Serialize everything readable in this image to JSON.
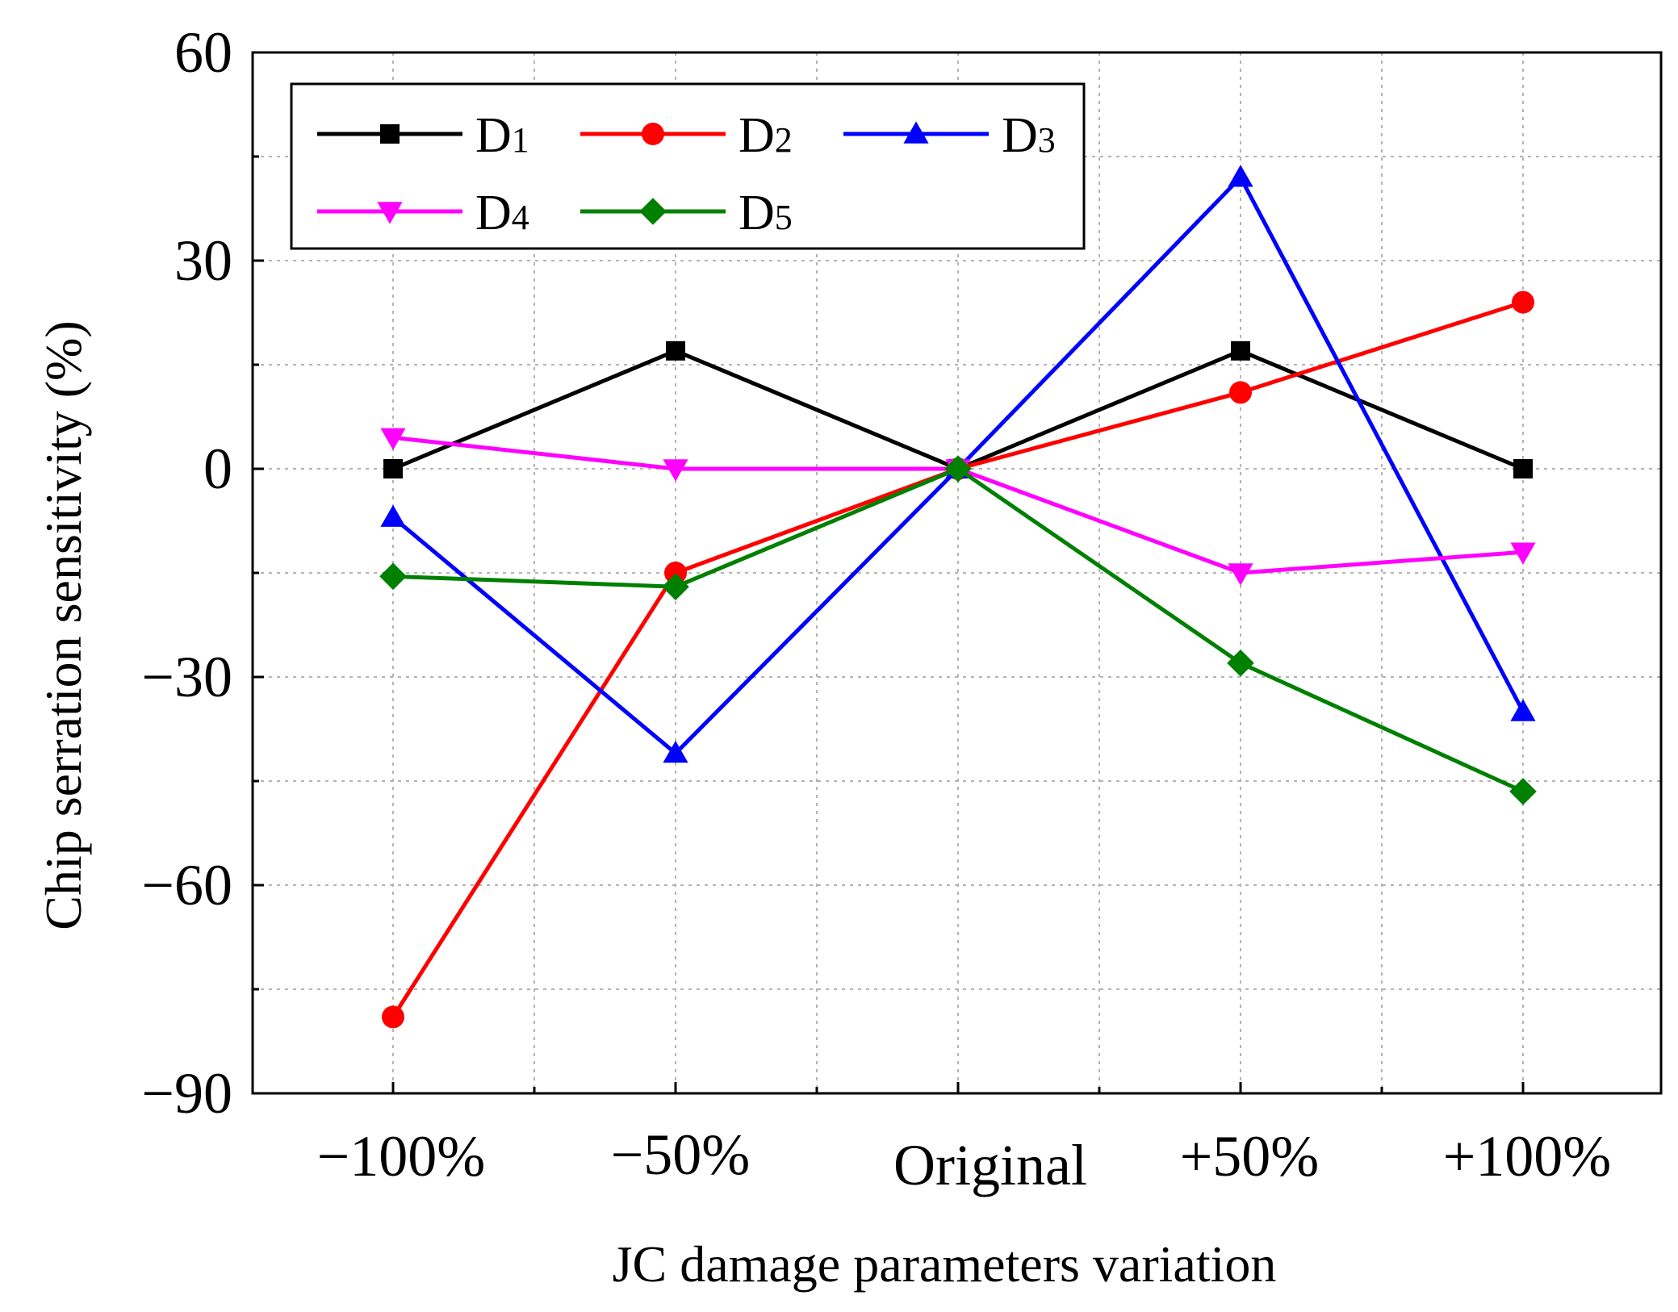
{
  "chart_data": {
    "type": "line",
    "title": "",
    "xlabel": "JC damage parameters variation",
    "ylabel": "Chip serration sensitivity (%)",
    "categories": [
      "−100%",
      "−50%",
      "Original",
      "+50%",
      "+100%"
    ],
    "ylim": [
      -90,
      60
    ],
    "yticks": [
      60,
      30,
      0,
      -30,
      -60,
      -90
    ],
    "ytick_labels": [
      "60",
      "30",
      "0",
      "−30",
      "−60",
      "−90"
    ],
    "grid": true,
    "legend_position": "top-left",
    "series": [
      {
        "name": "D1",
        "name_main": "D",
        "name_sub": "1",
        "color": "#000000",
        "marker": "square",
        "values": [
          0,
          17,
          0,
          17,
          0
        ]
      },
      {
        "name": "D2",
        "name_main": "D",
        "name_sub": "2",
        "color": "#ff0000",
        "marker": "circle",
        "values": [
          -79,
          -15,
          0,
          11,
          24
        ]
      },
      {
        "name": "D3",
        "name_main": "D",
        "name_sub": "3",
        "color": "#0000ff",
        "marker": "triangle-up",
        "values": [
          -7,
          -41,
          0,
          42,
          -35
        ]
      },
      {
        "name": "D4",
        "name_main": "D",
        "name_sub": "4",
        "color": "#ff00ff",
        "marker": "triangle-down",
        "values": [
          4.5,
          0,
          0,
          -15,
          -12
        ]
      },
      {
        "name": "D5",
        "name_main": "D",
        "name_sub": "5",
        "color": "#008000",
        "marker": "diamond",
        "values": [
          -15.5,
          -17,
          0,
          -28,
          -46.5
        ]
      }
    ]
  }
}
